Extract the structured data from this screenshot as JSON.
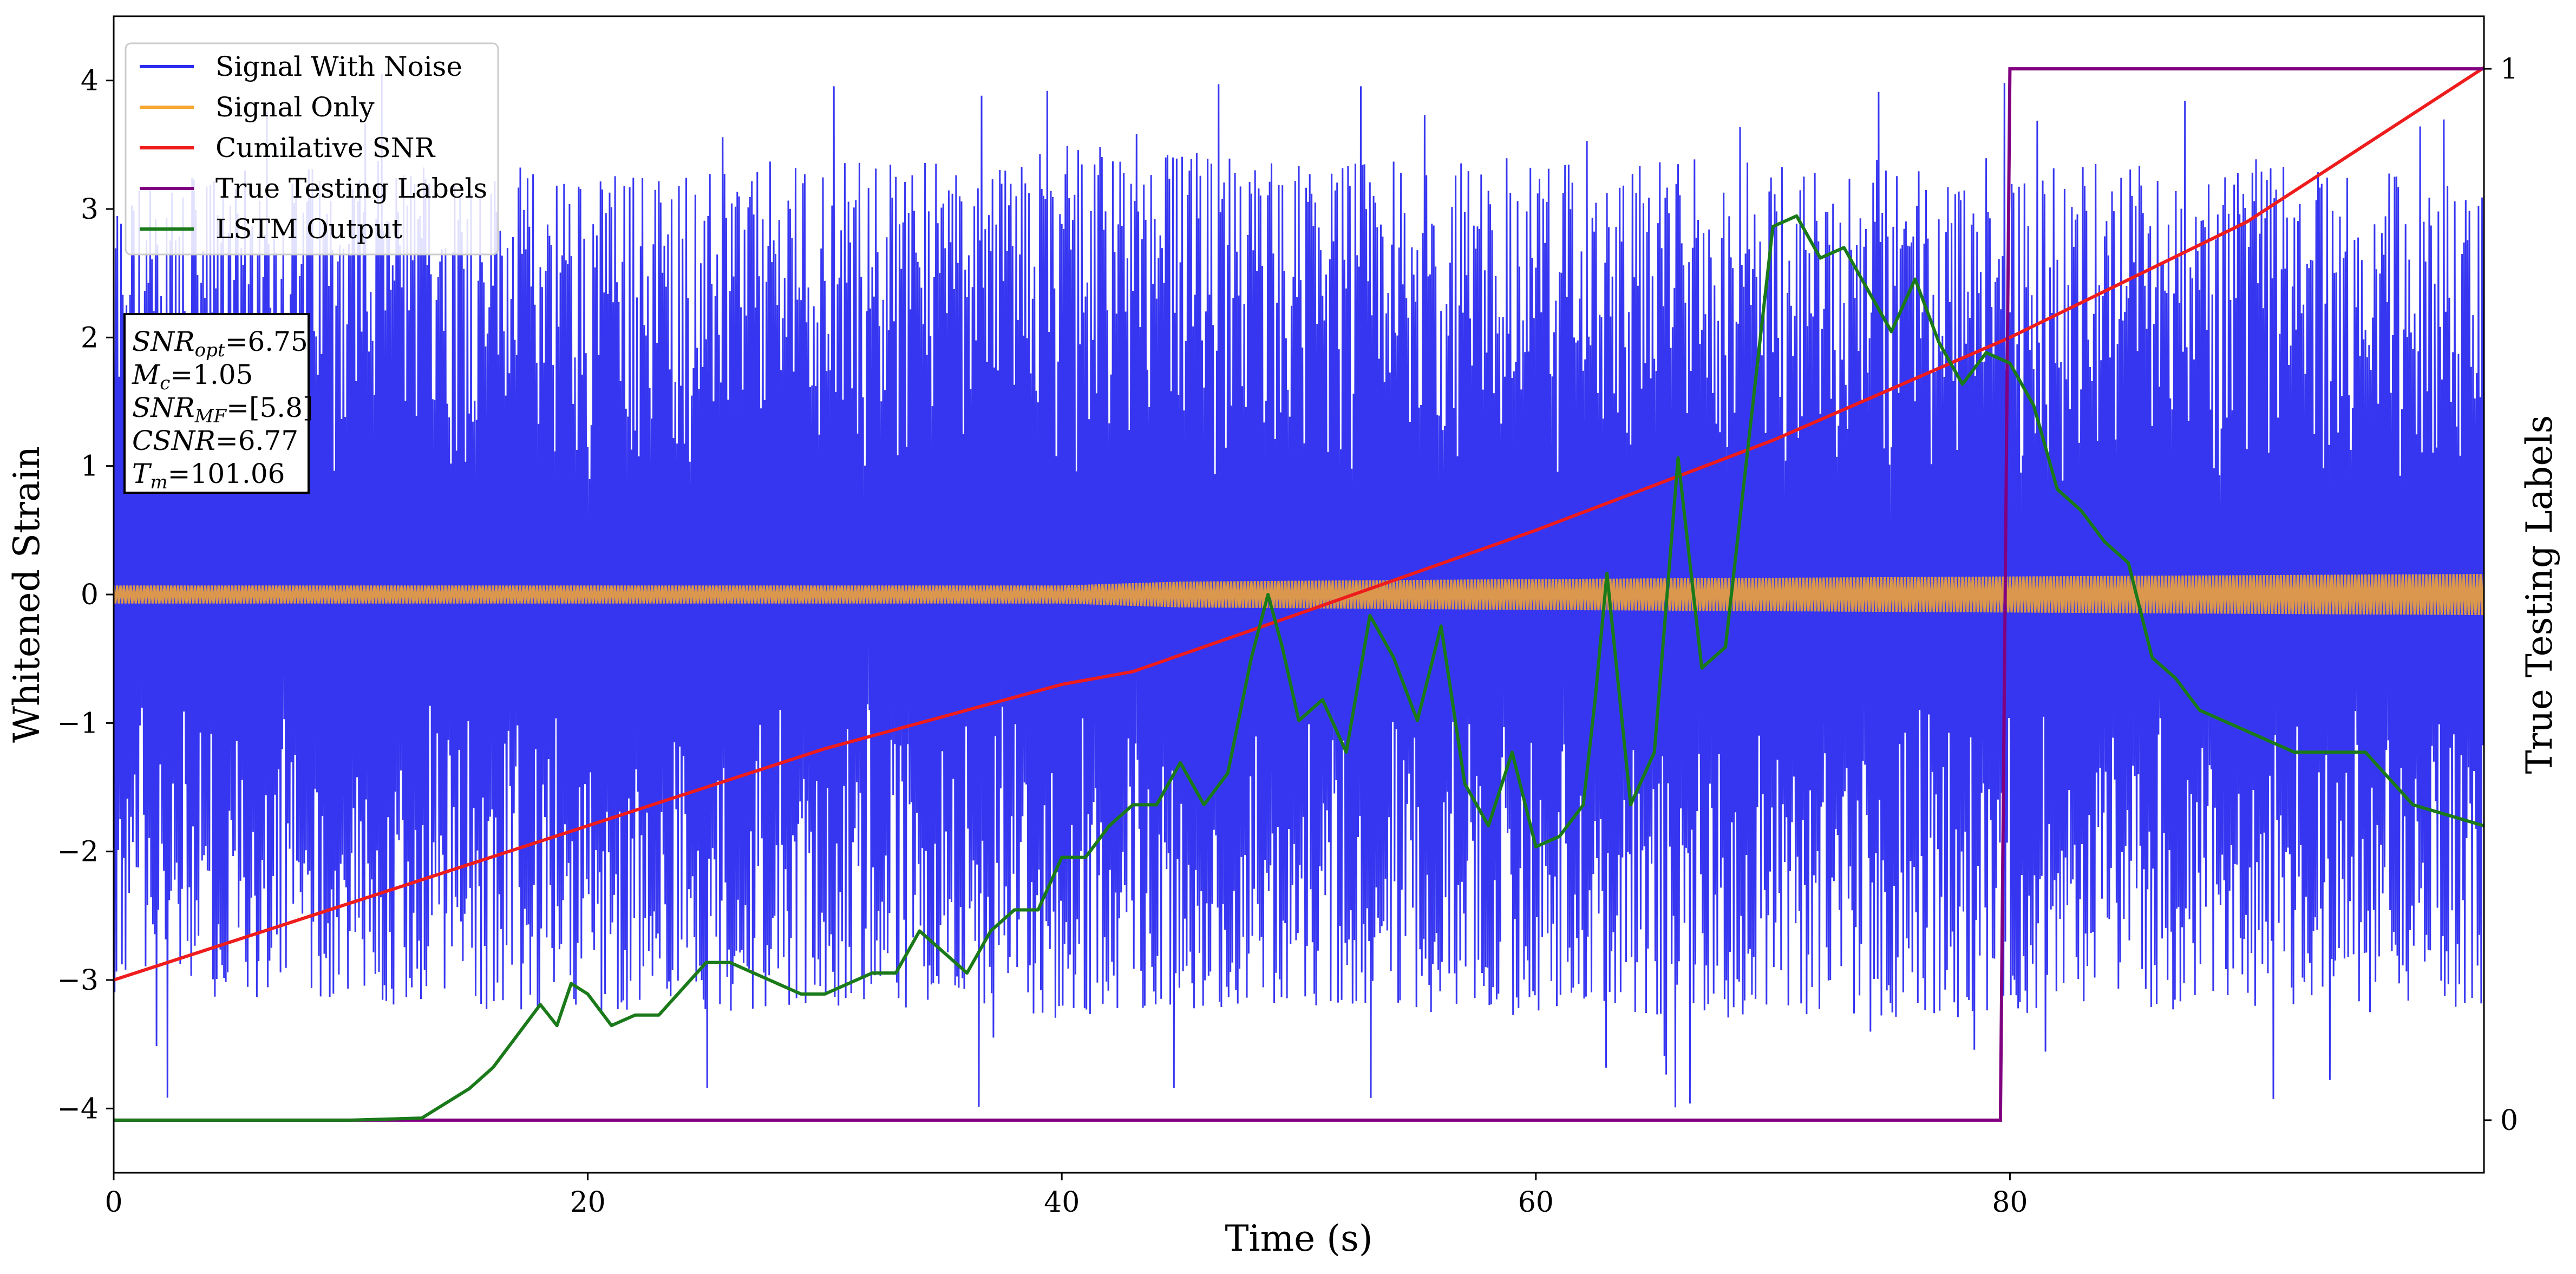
{
  "chart_data": {
    "type": "line",
    "xlabel": "Time (s)",
    "ylabel": "Whitened Strain",
    "ylabel_right": "True Testing Labels",
    "xlim": [
      0,
      100
    ],
    "ylim": [
      -4.5,
      4.5
    ],
    "ylim_right": [
      -0.05,
      1.05
    ],
    "xticks": [
      0,
      20,
      40,
      60,
      80
    ],
    "yticks": [
      -4,
      -3,
      -2,
      -1,
      0,
      1,
      2,
      3,
      4
    ],
    "yticks_right": [
      0,
      1
    ],
    "grid": false,
    "legend_position": "upper-left",
    "legend": [
      "Signal With Noise",
      "Signal Only",
      "Cumilative SNR",
      "True Testing Labels",
      "LSTM Output"
    ],
    "annotation": {
      "lines": [
        {
          "base": "SNR",
          "sub": "opt",
          "value": "=6.75"
        },
        {
          "base": "M",
          "sub": "c",
          "value": "=1.05"
        },
        {
          "base": "SNR",
          "sub": "MF",
          "value": "=[5.8]"
        },
        {
          "base": "CSNR",
          "sub": "",
          "value": "=6.77"
        },
        {
          "base": "T",
          "sub": "m",
          "value": "=101.06"
        }
      ]
    },
    "series": [
      {
        "name": "Signal With Noise",
        "color": "#2b2bf0",
        "band": {
          "x": [
            0,
            10,
            20,
            30,
            40,
            50,
            60,
            70,
            80,
            90,
            100
          ],
          "upper": [
            3.2,
            3.4,
            3.3,
            3.4,
            3.5,
            3.4,
            3.4,
            3.4,
            3.4,
            3.4,
            3.2
          ],
          "lower": [
            -3.1,
            -3.2,
            -3.3,
            -3.2,
            -3.3,
            -3.2,
            -3.3,
            -3.3,
            -3.3,
            -3.2,
            -3.3
          ],
          "min": -4.0,
          "max": 4.1
        }
      },
      {
        "name": "Signal Only",
        "color": "#f7a830",
        "band": {
          "x": [
            0,
            20,
            40,
            45,
            60,
            80,
            100
          ],
          "upper": [
            0.07,
            0.07,
            0.07,
            0.1,
            0.12,
            0.14,
            0.16
          ],
          "lower": [
            -0.07,
            -0.07,
            -0.07,
            -0.1,
            -0.12,
            -0.14,
            -0.16
          ]
        }
      },
      {
        "name": "Cumilative SNR",
        "color": "#ee1c1c",
        "x": [
          0,
          10,
          20,
          30,
          40,
          43,
          50,
          60,
          70,
          80,
          90,
          100
        ],
        "y": [
          -3.0,
          -2.4,
          -1.8,
          -1.2,
          -0.7,
          -0.6,
          -0.15,
          0.5,
          1.2,
          2.0,
          2.9,
          4.1
        ]
      },
      {
        "name": "True Testing Labels",
        "axis": "right",
        "color": "#800080",
        "x": [
          0,
          79.6,
          80.0,
          100
        ],
        "y": [
          0,
          0,
          1,
          1
        ]
      },
      {
        "name": "LSTM Output",
        "color": "#1a7a1a",
        "x": [
          0,
          10,
          13,
          15,
          16,
          17,
          18,
          18.7,
          19.3,
          20,
          21,
          22,
          23,
          25,
          26,
          27,
          28,
          29,
          30,
          31,
          32,
          33,
          34,
          35,
          36,
          37,
          38,
          39,
          40,
          41,
          42,
          43,
          44,
          45,
          46,
          47,
          48,
          48.7,
          49.3,
          50,
          51,
          52,
          53,
          54,
          55,
          56,
          57,
          58,
          59,
          60,
          61,
          62,
          62.5,
          63,
          64,
          65,
          66,
          67,
          68,
          69,
          70,
          71,
          72,
          73,
          74,
          75,
          76,
          77,
          78,
          79,
          80,
          81,
          82,
          83,
          84,
          85,
          86,
          87,
          88,
          90,
          92,
          95,
          97,
          100
        ],
        "y": [
          0.0,
          0.0,
          0.002,
          0.03,
          0.05,
          0.08,
          0.11,
          0.09,
          0.13,
          0.12,
          0.09,
          0.1,
          0.1,
          0.15,
          0.15,
          0.14,
          0.13,
          0.12,
          0.12,
          0.13,
          0.14,
          0.14,
          0.18,
          0.16,
          0.14,
          0.18,
          0.2,
          0.2,
          0.25,
          0.25,
          0.28,
          0.3,
          0.3,
          0.34,
          0.3,
          0.33,
          0.44,
          0.5,
          0.45,
          0.38,
          0.4,
          0.35,
          0.48,
          0.44,
          0.38,
          0.47,
          0.32,
          0.28,
          0.35,
          0.26,
          0.27,
          0.3,
          0.4,
          0.52,
          0.3,
          0.35,
          0.63,
          0.43,
          0.45,
          0.65,
          0.85,
          0.86,
          0.82,
          0.83,
          0.79,
          0.75,
          0.8,
          0.74,
          0.7,
          0.73,
          0.72,
          0.68,
          0.6,
          0.58,
          0.55,
          0.53,
          0.44,
          0.42,
          0.39,
          0.37,
          0.35,
          0.35,
          0.3,
          0.28
        ]
      }
    ]
  }
}
